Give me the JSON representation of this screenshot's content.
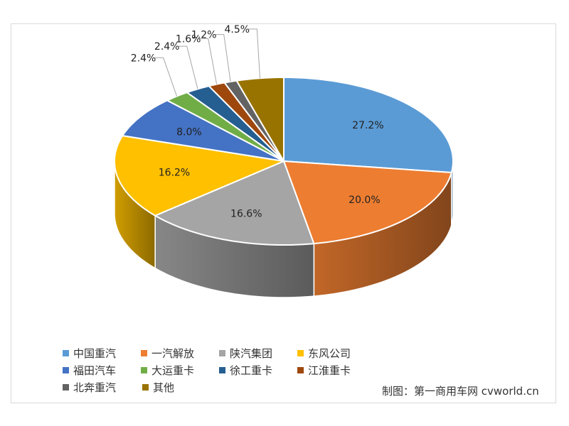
{
  "chart_data": {
    "type": "pie",
    "style": "3d",
    "slices": [
      {
        "name": "中国重汽",
        "value": 27.2,
        "label": "27.2%",
        "color": "#5b9bd5"
      },
      {
        "name": "一汽解放",
        "value": 20.0,
        "label": "20.0%",
        "color": "#ed7d31"
      },
      {
        "name": "陕汽集团",
        "value": 16.6,
        "label": "16.6%",
        "color": "#a5a5a5"
      },
      {
        "name": "东风公司",
        "value": 16.2,
        "label": "16.2%",
        "color": "#ffc000"
      },
      {
        "name": "福田汽车",
        "value": 8.0,
        "label": "8.0%",
        "color": "#4472c4"
      },
      {
        "name": "大运重卡",
        "value": 2.4,
        "label": "2.4%",
        "color": "#70ad47"
      },
      {
        "name": "徐工重卡",
        "value": 2.4,
        "label": "2.4%",
        "color": "#255e91"
      },
      {
        "name": "江淮重卡",
        "value": 1.6,
        "label": "1.6%",
        "color": "#9e480e"
      },
      {
        "name": "北奔重汽",
        "value": 1.2,
        "label": "1.2%",
        "color": "#636363"
      },
      {
        "name": "其他",
        "value": 4.5,
        "label": "4.5%",
        "color": "#997300"
      }
    ],
    "legend_position": "bottom-left"
  },
  "credit": "制图：第一商用车网  cvworld.cn"
}
